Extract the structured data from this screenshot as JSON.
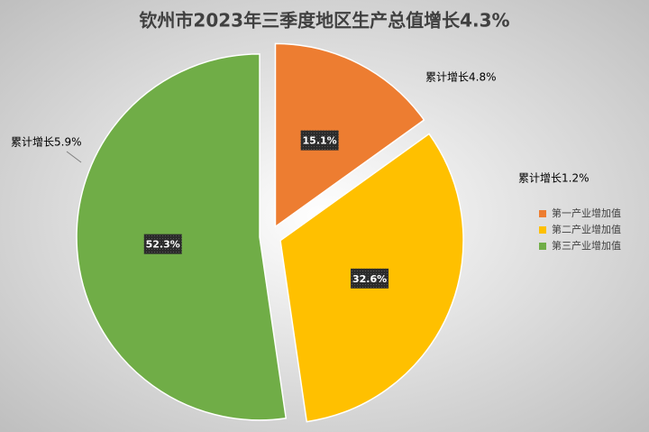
{
  "chart_data": {
    "type": "pie",
    "title": "钦州市2023年三季度地区生产总值增长4.3%",
    "categories": [
      "第一产业增加值",
      "第二产业增加值",
      "第三产业增加值"
    ],
    "values": [
      15.1,
      32.6,
      52.3
    ],
    "value_labels": [
      "15.1%",
      "32.6%",
      "52.3%"
    ],
    "colors": [
      "#ED7D31",
      "#FFC000",
      "#70AD47"
    ],
    "annotations": [
      "累计增长4.8%",
      "累计增长1.2%",
      "累计增长5.9%"
    ],
    "legend": "right"
  }
}
